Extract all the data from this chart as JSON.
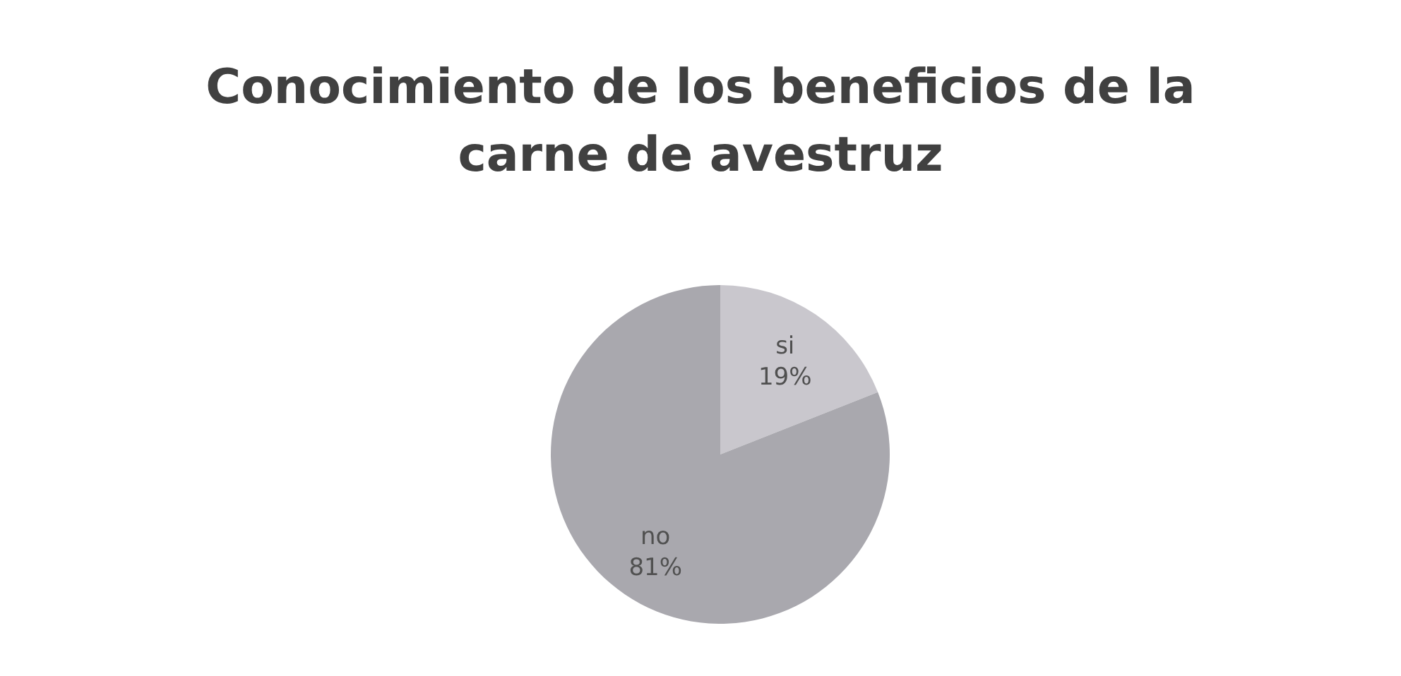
{
  "chart_data": {
    "type": "pie",
    "title": "Conocimiento de los beneficios de la carne de avestruz",
    "categories": [
      "si",
      "no"
    ],
    "values": [
      19,
      81
    ],
    "value_labels": [
      "19%",
      "81%"
    ],
    "colors": [
      "#c9c7cd",
      "#a9a8ae"
    ]
  }
}
